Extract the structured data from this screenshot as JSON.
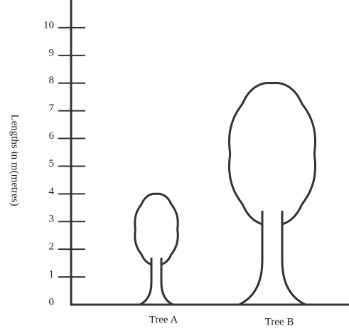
{
  "chart_data": {
    "type": "pictogram",
    "ylabel": "Lengths in m(metres)",
    "categories": [
      "Tree A",
      "Tree B"
    ],
    "values": [
      4,
      8
    ],
    "color": "#333333",
    "ylim": [
      0,
      11
    ],
    "yticks": [
      0,
      1,
      2,
      3,
      4,
      5,
      6,
      7,
      8,
      9,
      10
    ]
  }
}
